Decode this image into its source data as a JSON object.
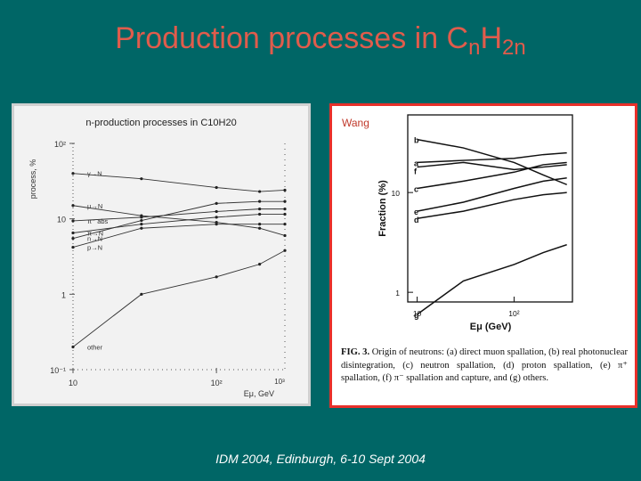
{
  "slide": {
    "title_main": "Production processes in C",
    "title_sub1": "n",
    "title_mid": "H",
    "title_sub2": "2n",
    "footer": "IDM 2004, Edinburgh, 6-10 Sept 2004"
  },
  "colors": {
    "background": "#006666",
    "title": "#e05c4c",
    "right_border": "#e8302a"
  },
  "chart_data": [
    {
      "type": "line",
      "title": "n-production processes in C10H20",
      "xlabel": "Eμ, GeV",
      "ylabel": "process, %",
      "xscale": "log",
      "yscale": "log",
      "xlim": [
        10,
        300
      ],
      "ylim": [
        0.1,
        100
      ],
      "x": [
        10,
        30,
        100,
        200,
        300
      ],
      "x_ticks": [
        {
          "v": 10,
          "t": "10"
        },
        {
          "v": 100,
          "t": "10²"
        }
      ],
      "x_tick_corner": "10³",
      "y_ticks": [
        {
          "v": 100,
          "t": "10²"
        },
        {
          "v": 10,
          "t": "10"
        },
        {
          "v": 1,
          "t": "1"
        },
        {
          "v": 0.1,
          "t": "10⁻¹"
        }
      ],
      "series": [
        {
          "name": "γ→N",
          "values": [
            40,
            34,
            26,
            23,
            24
          ]
        },
        {
          "name": "μ→N",
          "values": [
            15,
            11,
            9,
            7.5,
            6
          ]
        },
        {
          "name": "π⁻ abs",
          "values": [
            9.4,
            10.5,
            12.5,
            13.5,
            13.5
          ]
        },
        {
          "name": "π→N",
          "values": [
            6.5,
            8.5,
            10.5,
            11.5,
            11.5
          ]
        },
        {
          "name": "n→N",
          "values": [
            5.5,
            9.5,
            16,
            17,
            17
          ]
        },
        {
          "name": "p→N",
          "values": [
            4.2,
            7.5,
            8.5,
            8.5,
            8.5
          ]
        },
        {
          "name": "other",
          "values": [
            0.2,
            1,
            1.7,
            2.5,
            3.8
          ]
        }
      ]
    },
    {
      "type": "line",
      "annotation": "Wang",
      "xlabel": "Eμ (GeV)",
      "ylabel": "Fraction (%)",
      "xscale": "log",
      "yscale": "log",
      "xlim": [
        8,
        400
      ],
      "ylim": [
        0.8,
        60
      ],
      "x": [
        10,
        30,
        100,
        200,
        350
      ],
      "x_ticks": [
        {
          "v": 10,
          "t": "10"
        },
        {
          "v": 100,
          "t": "10²"
        }
      ],
      "y_ticks": [
        {
          "v": 1,
          "t": "1"
        },
        {
          "v": 10,
          "t": "10"
        }
      ],
      "series": [
        {
          "name": "b",
          "values": [
            34,
            28,
            20,
            15,
            12
          ]
        },
        {
          "name": "a",
          "values": [
            20,
            21,
            22,
            24,
            25
          ]
        },
        {
          "name": "f",
          "values": [
            18,
            20,
            17,
            18,
            19
          ]
        },
        {
          "name": "c",
          "values": [
            11,
            13,
            16,
            19,
            20
          ]
        },
        {
          "name": "e",
          "values": [
            6.5,
            8,
            11,
            13,
            14
          ]
        },
        {
          "name": "d",
          "values": [
            5.5,
            6.5,
            8.5,
            9.5,
            10
          ]
        },
        {
          "name": "g",
          "values": [
            0.6,
            1.3,
            1.9,
            2.5,
            3
          ]
        }
      ],
      "caption": {
        "label": "FIG. 3.",
        "text": "Origin of neutrons: (a) direct muon spallation, (b) real photonuclear disintegration, (c) neutron spallation, (d) proton spallation, (e) π⁺ spallation, (f) π⁻ spallation and capture, and (g) others."
      }
    }
  ]
}
